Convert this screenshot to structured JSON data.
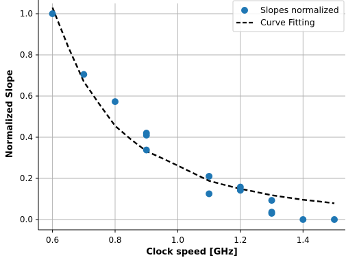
{
  "chart_data": {
    "type": "scatter",
    "title": "",
    "xlabel": "Clock speed [GHz]",
    "ylabel": "Normalized Slope",
    "xlim": [
      0.555,
      1.535
    ],
    "ylim": [
      -0.05,
      1.05
    ],
    "x_ticks": [
      0.6,
      0.8,
      1.0,
      1.2,
      1.4
    ],
    "x_tick_labels": [
      "0.6",
      "0.8",
      "1.0",
      "1.2",
      "1.4"
    ],
    "y_ticks": [
      0.0,
      0.2,
      0.4,
      0.6,
      0.8,
      1.0
    ],
    "y_tick_labels": [
      "0.0",
      "0.2",
      "0.4",
      "0.6",
      "0.8",
      "1.0"
    ],
    "grid": true,
    "legend_position": "top-right",
    "series": [
      {
        "name": "Slopes normalized",
        "kind": "scatter",
        "color": "#1f77b4",
        "points": [
          [
            0.6,
            1.0
          ],
          [
            0.7,
            0.705
          ],
          [
            0.8,
            0.573
          ],
          [
            0.9,
            0.42
          ],
          [
            0.9,
            0.41
          ],
          [
            0.9,
            0.338
          ],
          [
            1.1,
            0.21
          ],
          [
            1.1,
            0.125
          ],
          [
            1.2,
            0.158
          ],
          [
            1.2,
            0.142
          ],
          [
            1.3,
            0.093
          ],
          [
            1.3,
            0.036
          ],
          [
            1.3,
            0.03
          ],
          [
            1.4,
            0.0
          ],
          [
            1.5,
            0.0
          ]
        ]
      },
      {
        "name": "Curve Fitting",
        "kind": "line",
        "style": "dashed",
        "color": "#000000",
        "points": [
          [
            0.6,
            1.03
          ],
          [
            0.65,
            0.84
          ],
          [
            0.7,
            0.67
          ],
          [
            0.75,
            0.56
          ],
          [
            0.8,
            0.455
          ],
          [
            0.85,
            0.39
          ],
          [
            0.9,
            0.332
          ],
          [
            0.95,
            0.298
          ],
          [
            1.0,
            0.262
          ],
          [
            1.05,
            0.225
          ],
          [
            1.1,
            0.188
          ],
          [
            1.15,
            0.168
          ],
          [
            1.2,
            0.149
          ],
          [
            1.25,
            0.134
          ],
          [
            1.3,
            0.118
          ],
          [
            1.35,
            0.107
          ],
          [
            1.4,
            0.096
          ],
          [
            1.45,
            0.088
          ],
          [
            1.5,
            0.079
          ]
        ]
      }
    ]
  }
}
